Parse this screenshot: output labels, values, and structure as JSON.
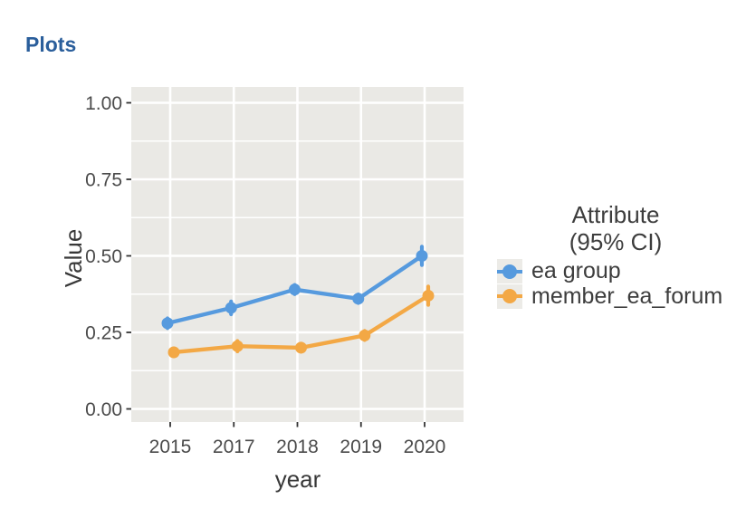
{
  "page": {
    "heading": "Plots"
  },
  "colors": {
    "heading": "#2a5e9b",
    "panel_bg": "#eae9e5",
    "grid": "#ffffff",
    "tick_mark": "#333333",
    "tick_text": "#4b4b4b",
    "axis_title_text": "#383838",
    "legend_text": "#3d3d3d",
    "legend_key_bg": "#ecebe7"
  },
  "chart_data": {
    "type": "line",
    "title": "",
    "xlabel": "year",
    "ylabel": "Value",
    "categories": [
      "2015",
      "2017",
      "2018",
      "2019",
      "2020"
    ],
    "ylim": [
      0,
      1
    ],
    "yticks": {
      "values": [
        0,
        0.25,
        0.5,
        0.75,
        1
      ],
      "labels": [
        "0.00",
        "0.25",
        "0.50",
        "0.75",
        "1.00"
      ]
    },
    "yminor": [
      0.125,
      0.375,
      0.625,
      0.875
    ],
    "grid": "major-and-minor-white-on-gray",
    "legend": {
      "position": "right",
      "title_line1": "Attribute",
      "title_line2": "(95% CI)"
    },
    "series": [
      {
        "name": "ea group",
        "color": "#569ade",
        "values": [
          0.28,
          0.33,
          0.39,
          0.36,
          0.5
        ],
        "ci95_half": [
          0.016,
          0.021,
          0.015,
          0.014,
          0.03
        ]
      },
      {
        "name": "member_ea_forum",
        "color": "#f3a845",
        "values": [
          0.185,
          0.205,
          0.2,
          0.24,
          0.37
        ],
        "ci95_half": [
          0.013,
          0.017,
          0.013,
          0.015,
          0.03
        ]
      }
    ]
  }
}
